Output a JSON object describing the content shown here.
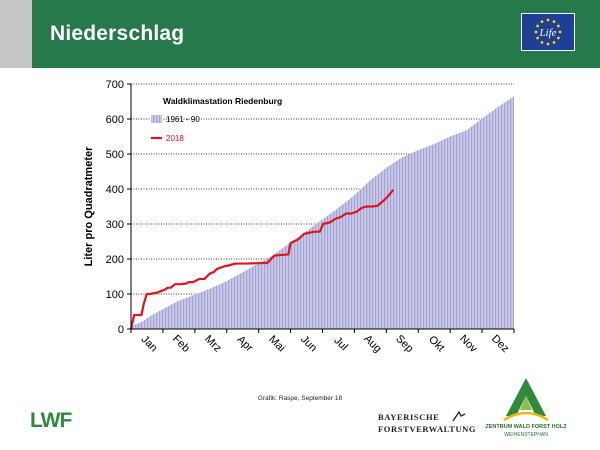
{
  "slide": {
    "title": "Niederschlag",
    "credit": "Grafik: Raspe, September 18",
    "logos": {
      "eu_flag_text": "Life",
      "lwf": "LWF",
      "bayern_line1": "BAYERISCHE",
      "bayern_line2": "FORSTVERWALTUNG",
      "zwfh_line1": "ZENTRUM WALD FORST HOLZ",
      "zwfh_line2": "WEIHENSTEPHAN"
    },
    "colors": {
      "header_green": "#26794a",
      "area_fill": "#b8b8de",
      "line_2018": "#e0141e"
    }
  },
  "chart_data": {
    "type": "area",
    "title": "Waldklimastation Riedenburg",
    "xlabel": "",
    "ylabel": "Liter pro Quadratmeter",
    "ylim": [
      0,
      700
    ],
    "yticks": [
      0,
      100,
      200,
      300,
      400,
      500,
      600,
      700
    ],
    "grid": "horizontal dotted",
    "legend_position": "top-left",
    "x_unit": "day of year",
    "xlim": [
      0,
      365
    ],
    "month_labels": [
      "Jan",
      "Feb",
      "Mrz",
      "Apr",
      "Mai",
      "Jun",
      "Jul",
      "Aug",
      "Sep",
      "Okt",
      "Nov",
      "Dez"
    ],
    "series": [
      {
        "name": "1961 - 90",
        "kind": "area",
        "x": [
          0,
          10,
          20,
          31,
          45,
          59,
          75,
          90,
          105,
          120,
          135,
          151,
          165,
          181,
          195,
          212,
          228,
          243,
          258,
          273,
          290,
          304,
          320,
          334,
          350,
          365
        ],
        "y": [
          8,
          20,
          40,
          58,
          80,
          96,
          115,
          135,
          160,
          185,
          210,
          245,
          275,
          310,
          340,
          380,
          425,
          460,
          490,
          510,
          530,
          550,
          568,
          600,
          635,
          665
        ]
      },
      {
        "name": "2018",
        "kind": "line",
        "x": [
          0,
          3,
          5,
          10,
          12,
          15,
          18,
          25,
          28,
          32,
          35,
          38,
          42,
          47,
          53,
          55,
          59,
          65,
          70,
          75,
          79,
          82,
          90,
          92,
          97,
          100,
          110,
          120,
          130,
          135,
          137,
          150,
          152,
          155,
          159,
          165,
          170,
          175,
          180,
          183,
          190,
          195,
          200,
          205,
          210,
          215,
          220,
          222,
          225,
          230,
          235,
          238,
          242,
          246,
          250
        ],
        "y": [
          0,
          40,
          40,
          40,
          70,
          100,
          100,
          104,
          108,
          112,
          118,
          118,
          128,
          128,
          130,
          134,
          134,
          143,
          143,
          158,
          163,
          172,
          180,
          181,
          185,
          187,
          187,
          188,
          189,
          205,
          210,
          213,
          245,
          250,
          255,
          272,
          275,
          278,
          278,
          300,
          305,
          315,
          320,
          330,
          330,
          335,
          346,
          348,
          350,
          350,
          352,
          360,
          370,
          383,
          398
        ]
      }
    ]
  }
}
